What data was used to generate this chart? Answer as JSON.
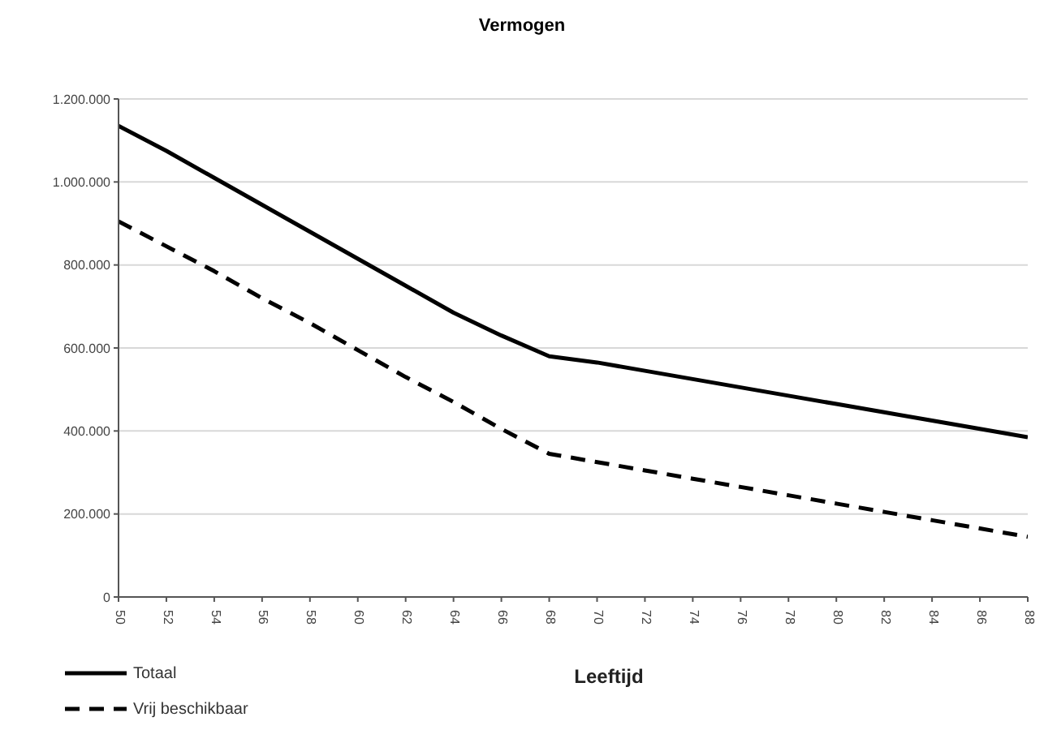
{
  "chart_data": {
    "type": "line",
    "title": "Vermogen",
    "xlabel": "Leeftijd",
    "categories": [
      "50",
      "52",
      "54",
      "56",
      "58",
      "60",
      "62",
      "64",
      "66",
      "68",
      "70",
      "72",
      "74",
      "76",
      "78",
      "80",
      "82",
      "84",
      "86",
      "88"
    ],
    "series": [
      {
        "name": "Totaal",
        "color": "#000000",
        "line_style": "solid",
        "values": [
          1135000,
          1075000,
          1010000,
          945000,
          880000,
          815000,
          750000,
          685000,
          630000,
          580000,
          565000,
          545000,
          525000,
          505000,
          485000,
          465000,
          445000,
          425000,
          405000,
          385000
        ]
      },
      {
        "name": "Vrij beschikbaar",
        "color": "#000000",
        "line_style": "dashed",
        "values": [
          905000,
          845000,
          785000,
          720000,
          660000,
          595000,
          530000,
          470000,
          405000,
          345000,
          325000,
          305000,
          285000,
          265000,
          245000,
          225000,
          205000,
          185000,
          165000,
          145000
        ]
      }
    ],
    "ylim": [
      0,
      1200000
    ],
    "yticks": [
      {
        "value": 0,
        "label": "0"
      },
      {
        "value": 200000,
        "label": "200.000"
      },
      {
        "value": 400000,
        "label": "400.000"
      },
      {
        "value": 600000,
        "label": "600.000"
      },
      {
        "value": 800000,
        "label": "800.000"
      },
      {
        "value": 1000000,
        "label": "1.000.000"
      },
      {
        "value": 1200000,
        "label": "1.200.000"
      }
    ],
    "grid": "y",
    "legend": "bottom left",
    "marker": "none"
  }
}
